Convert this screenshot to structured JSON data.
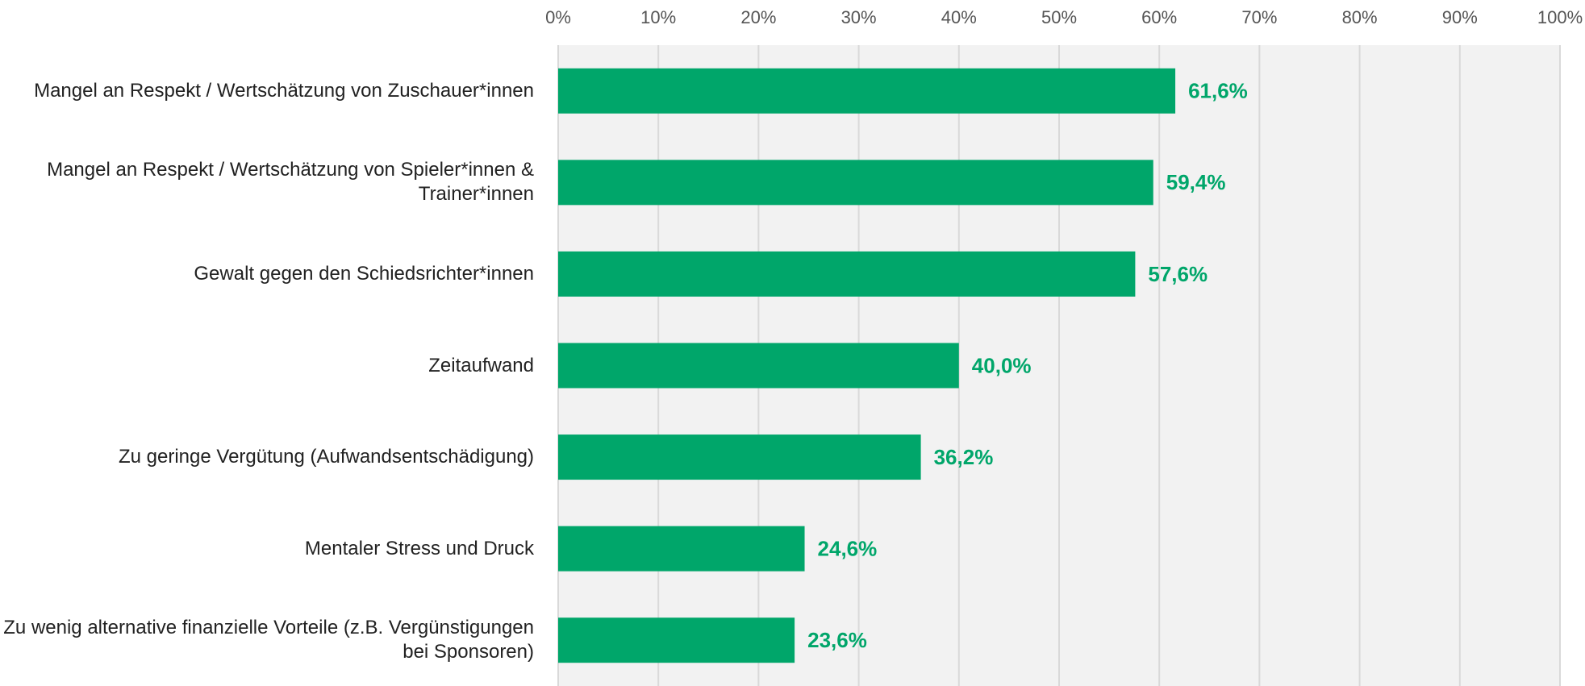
{
  "chart_data": {
    "type": "bar",
    "orientation": "horizontal",
    "categories": [
      "Mangel an Respekt / Wertschätzung von Zuschauer*innen",
      "Mangel an Respekt / Wertschätzung von Spieler*innen & Trainer*innen",
      "Gewalt gegen den Schiedsrichter*innen",
      "Zeitaufwand",
      "Zu geringe Vergütung (Aufwandsentschädigung)",
      "Mentaler Stress und Druck",
      "Zu wenig alternative finanzielle Vorteile (z.B. Vergünstigungen bei Sponsoren)"
    ],
    "values": [
      61.6,
      59.4,
      57.6,
      40.0,
      36.2,
      24.6,
      23.6
    ],
    "value_labels": [
      "61,6%",
      "59,4%",
      "57,6%",
      "40,0%",
      "36,2%",
      "24,6%",
      "23,6%"
    ],
    "color": "#00a66a",
    "xlim": [
      0,
      100
    ],
    "xticks": [
      {
        "value": 0,
        "label": "0%"
      },
      {
        "value": 10,
        "label": "10%"
      },
      {
        "value": 20,
        "label": "20%"
      },
      {
        "value": 30,
        "label": "30%"
      },
      {
        "value": 40,
        "label": "40%"
      },
      {
        "value": 50,
        "label": "50%"
      },
      {
        "value": 60,
        "label": "60%"
      },
      {
        "value": 70,
        "label": "70%"
      },
      {
        "value": 80,
        "label": "80%"
      },
      {
        "value": 90,
        "label": "90%"
      },
      {
        "value": 100,
        "label": "100%"
      }
    ],
    "grid": true
  }
}
